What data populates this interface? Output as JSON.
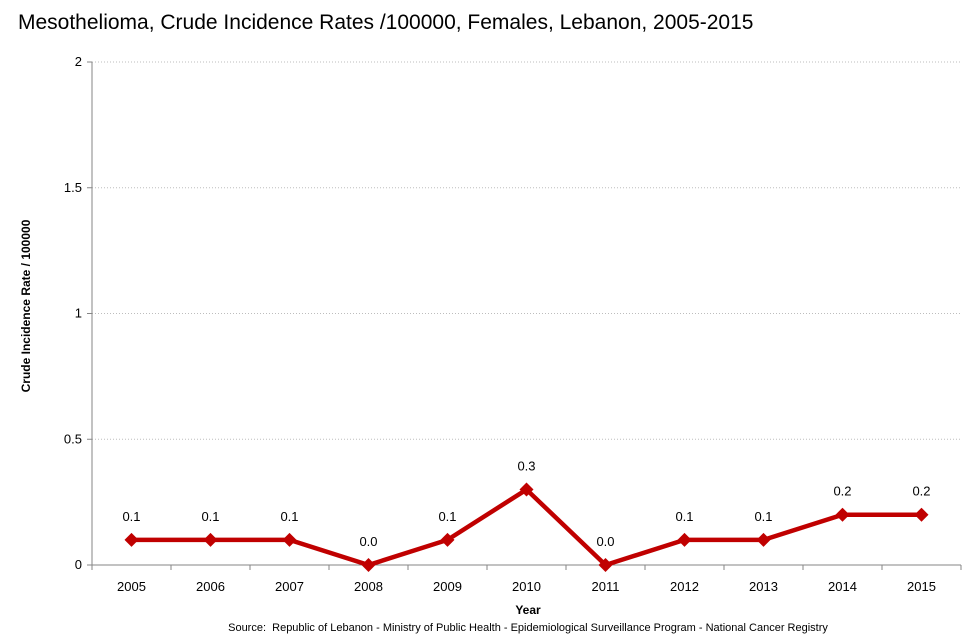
{
  "chart_data": {
    "type": "line",
    "title": "Mesothelioma, Crude Incidence Rates /100000,  Females, Lebanon, 2005-2015",
    "xlabel": "Year",
    "ylabel": "Crude Incidence Rate / 100000",
    "categories": [
      "2005",
      "2006",
      "2007",
      "2008",
      "2009",
      "2010",
      "2011",
      "2012",
      "2013",
      "2014",
      "2015"
    ],
    "series": [
      {
        "values": [
          0.1,
          0.1,
          0.1,
          0.0,
          0.1,
          0.3,
          0.0,
          0.1,
          0.1,
          0.2,
          0.2
        ],
        "data_labels": [
          "0.1",
          "0.1",
          "0.1",
          "0.0",
          "0.1",
          "0.3",
          "0.0",
          "0.1",
          "0.1",
          "0.2",
          "0.2"
        ],
        "color": "#c00000"
      }
    ],
    "ylim": [
      0,
      2
    ],
    "yticks": [
      0,
      0.5,
      1,
      1.5,
      2
    ],
    "ytick_labels": [
      "0",
      "0.5",
      "1",
      "1.5",
      "2"
    ],
    "grid": true,
    "legend": "none",
    "source": "Source:  Republic of Lebanon - Ministry of Public Health - Epidemiological Surveillance Program - National Cancer Registry"
  }
}
